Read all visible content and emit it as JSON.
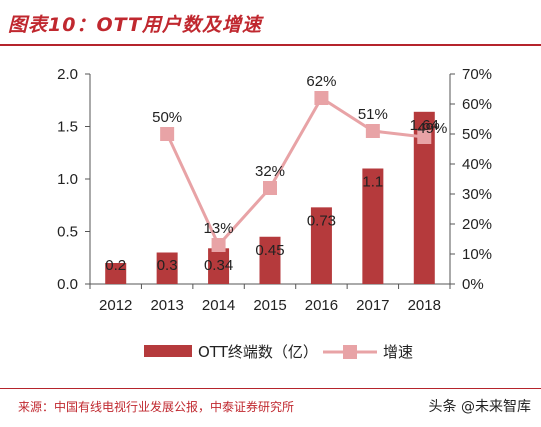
{
  "header": {
    "title": "图表10：OTT用户数及增速"
  },
  "footer": {
    "source": "来源：中国有线电视行业发展公报，中泰证券研究所"
  },
  "watermark": {
    "text": "头条 @未来智库"
  },
  "colors": {
    "bar": "#b53a3c",
    "line": "#e8a3a6",
    "title_red": "#c0282f"
  },
  "chart_data": {
    "type": "bar+line",
    "categories": [
      "2012",
      "2013",
      "2014",
      "2015",
      "2016",
      "2017",
      "2018"
    ],
    "series": [
      {
        "name": "OTT终端数（亿）",
        "type": "bar",
        "axis": "left",
        "values": [
          0.2,
          0.3,
          0.34,
          0.45,
          0.73,
          1.1,
          1.64
        ],
        "labels": [
          "0.2",
          "0.3",
          "0.34",
          "0.45",
          "0.73",
          "1.1",
          "1.64"
        ]
      },
      {
        "name": "增速",
        "type": "line",
        "axis": "right",
        "values": [
          null,
          50,
          13,
          32,
          62,
          51,
          49
        ],
        "labels": [
          "",
          "50%",
          "13%",
          "32%",
          "62%",
          "51%",
          "49%"
        ]
      }
    ],
    "y_left": {
      "ticks": [
        "0.0",
        "0.5",
        "1.0",
        "1.5",
        "2.0"
      ],
      "ylim": [
        0,
        2.0
      ]
    },
    "y_right": {
      "ticks": [
        "0%",
        "10%",
        "20%",
        "30%",
        "40%",
        "50%",
        "60%",
        "70%"
      ],
      "ylim": [
        0,
        70
      ]
    },
    "legend_position": "bottom"
  }
}
